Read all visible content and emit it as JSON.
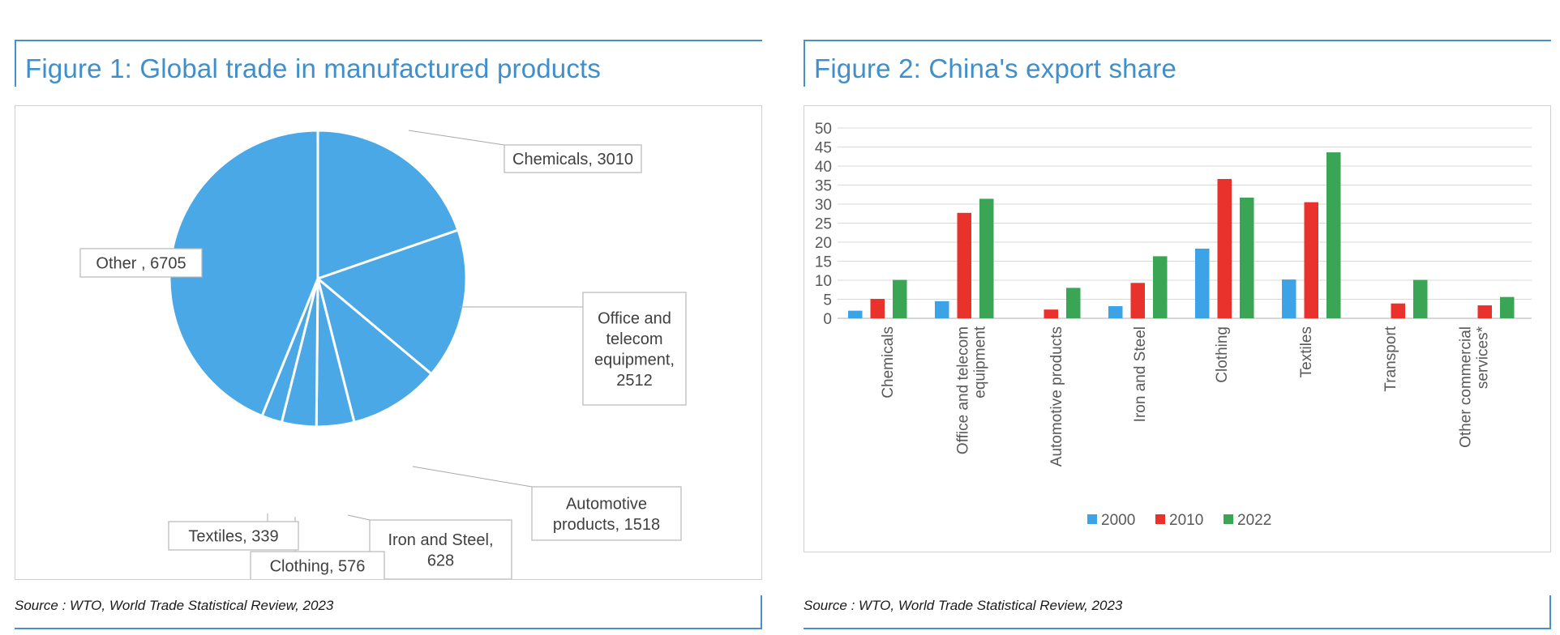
{
  "figure1": {
    "title": "Figure 1: Global trade in manufactured products",
    "source": "Source : WTO, World Trade Statistical Review, 2023"
  },
  "figure2": {
    "title": "Figure 2: China's export share",
    "source": "Source : WTO, World Trade Statistical Review, 2023"
  },
  "colors": {
    "accent": "#4a8fc8",
    "title": "#3f8fcb",
    "pie": "#4aa8e6",
    "s2000": "#3ba3e6",
    "s2010": "#e8322b",
    "s2022": "#3aa655"
  },
  "chart_data": [
    {
      "type": "pie",
      "slices": [
        {
          "label": "Chemicals, 3010",
          "value": 3010
        },
        {
          "label": "Office and telecom equipment, 2512",
          "value": 2512
        },
        {
          "label": "Automotive products, 1518",
          "value": 1518
        },
        {
          "label": "Iron and Steel, 628",
          "value": 628
        },
        {
          "label": "Clothing, 576",
          "value": 576
        },
        {
          "label": "Textiles, 339",
          "value": 339
        },
        {
          "label": "Other , 6705",
          "value": 6705
        }
      ],
      "start_angle": "12 o'clock, clockwise"
    },
    {
      "type": "bar",
      "categories": [
        "Chemicals",
        "Office and telecom equipment",
        "Automotive products",
        "Iron and Steel",
        "Clothing",
        "Textiles",
        "Transport",
        "Other commercial services*"
      ],
      "series": [
        {
          "name": "2000",
          "values": [
            2,
            4.5,
            0,
            3.2,
            18.3,
            10.2,
            0,
            0
          ]
        },
        {
          "name": "2010",
          "values": [
            5.1,
            27.7,
            2.3,
            9.3,
            36.6,
            30.5,
            3.9,
            3.4
          ]
        },
        {
          "name": "2022",
          "values": [
            10.1,
            31.4,
            8,
            16.3,
            31.7,
            43.6,
            10.1,
            5.6
          ]
        }
      ],
      "yticks": [
        0,
        5,
        10,
        15,
        20,
        25,
        30,
        35,
        40,
        45,
        50
      ],
      "ylim": [
        0,
        50
      ],
      "grid": true,
      "legend": "bottom"
    }
  ]
}
